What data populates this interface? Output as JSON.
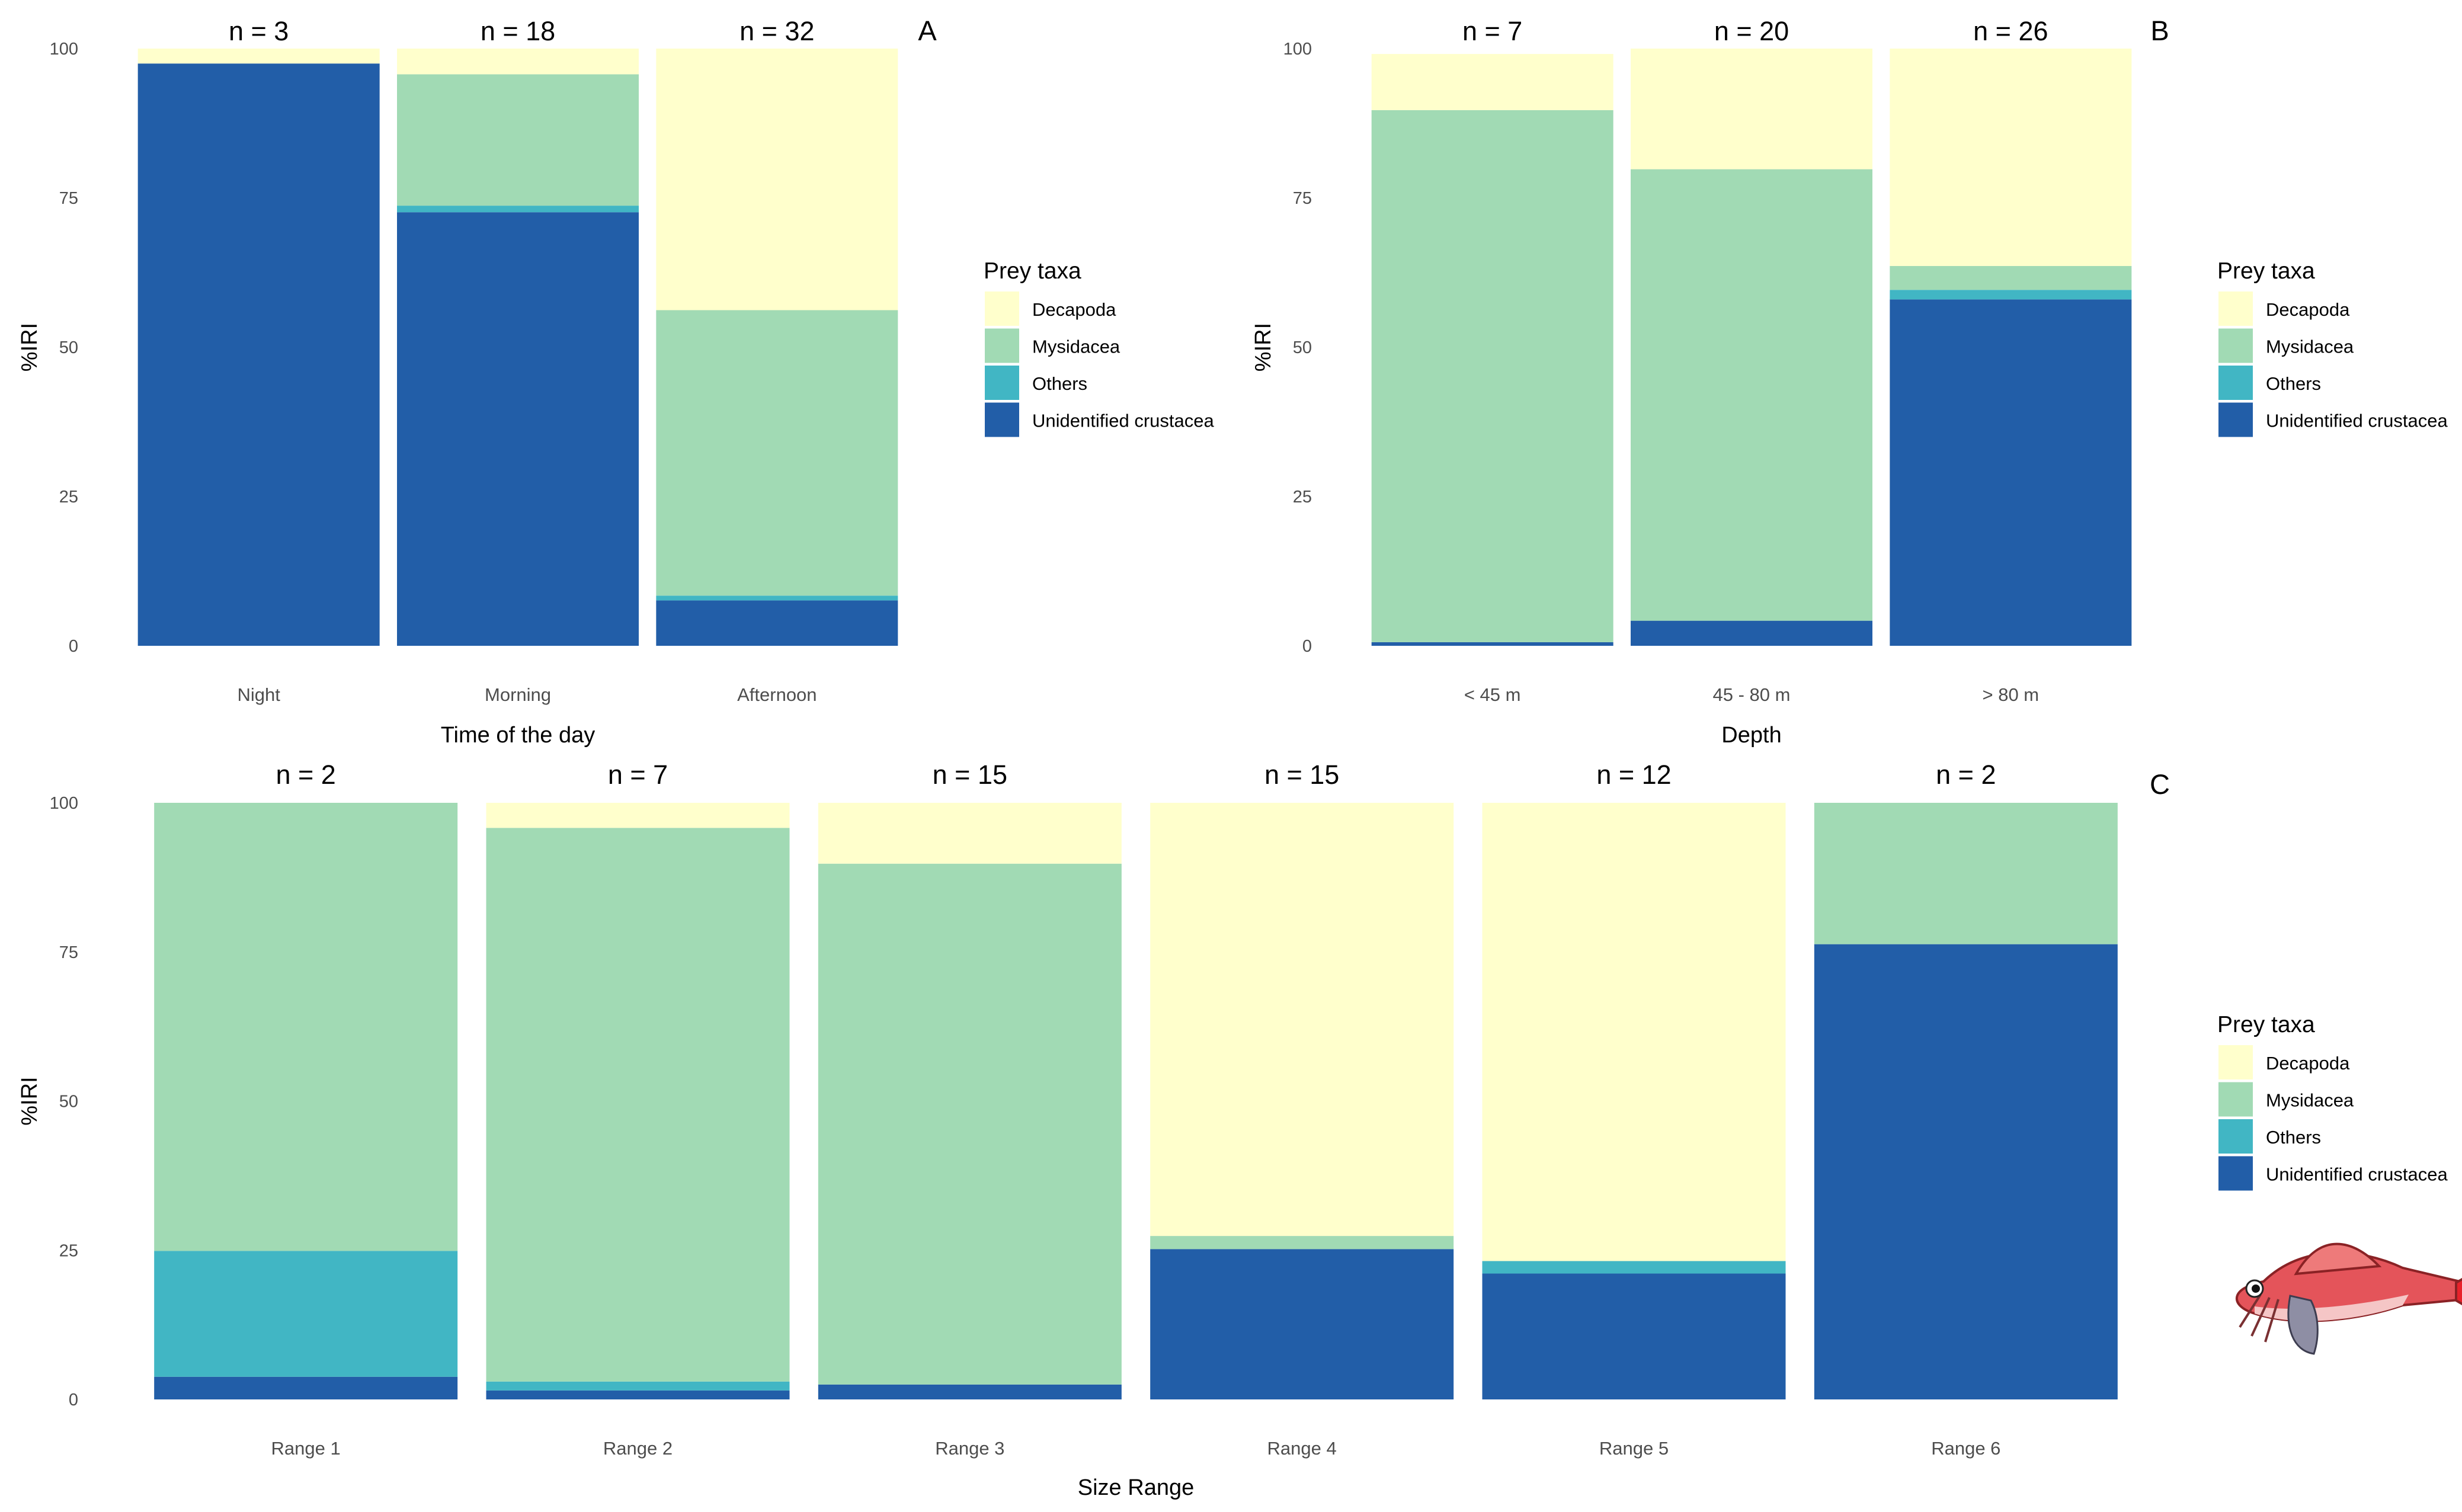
{
  "colors": {
    "Decapoda": "#FFFFCC",
    "Mysidacea": "#A1DAB4",
    "Others": "#41B6C4",
    "Unidentified crustacea": "#225EA8"
  },
  "legend": {
    "title": "Prey taxa",
    "items": [
      "Decapoda",
      "Mysidacea",
      "Others",
      "Unidentified crustacea"
    ]
  },
  "fish_illustration": "red-gurnard-fish-icon",
  "chart_data": [
    {
      "type": "bar",
      "stacked": true,
      "panel": "A",
      "xlabel": "Time of the day",
      "ylabel": "%IRI",
      "ylim": [
        0,
        100
      ],
      "yticks": [
        "0",
        "25",
        "50",
        "75",
        "100"
      ],
      "categories": [
        "Night",
        "Morning",
        "Afternoon"
      ],
      "n_labels": [
        "n = 3",
        "n = 18",
        "n = 32"
      ],
      "series": [
        {
          "name": "Unidentified crustacea",
          "values": [
            97.5,
            72.6,
            7.6
          ]
        },
        {
          "name": "Others",
          "values": [
            0,
            1.1,
            0.8
          ]
        },
        {
          "name": "Mysidacea",
          "values": [
            0,
            22.0,
            47.8
          ]
        },
        {
          "name": "Decapoda",
          "values": [
            2.5,
            4.3,
            43.8
          ]
        }
      ]
    },
    {
      "type": "bar",
      "stacked": true,
      "panel": "B",
      "xlabel": "Depth",
      "ylabel": "%IRI",
      "ylim": [
        0,
        100
      ],
      "yticks": [
        "0",
        "25",
        "50",
        "75",
        "100"
      ],
      "categories": [
        "< 45 m",
        "45 - 80 m",
        "> 80 m"
      ],
      "n_labels": [
        "n = 7",
        "n = 20",
        "n = 26"
      ],
      "series": [
        {
          "name": "Unidentified crustacea",
          "values": [
            0.6,
            4.2,
            58.0
          ]
        },
        {
          "name": "Others",
          "values": [
            0,
            0,
            1.6
          ]
        },
        {
          "name": "Mysidacea",
          "values": [
            89.1,
            75.6,
            4.0
          ]
        },
        {
          "name": "Decapoda",
          "values": [
            9.4,
            20.2,
            36.4
          ]
        }
      ]
    },
    {
      "type": "bar",
      "stacked": true,
      "panel": "C",
      "xlabel": "Size Range",
      "ylabel": "%IRI",
      "ylim": [
        0,
        100
      ],
      "yticks": [
        "0",
        "25",
        "50",
        "75",
        "100"
      ],
      "categories": [
        "Range 1",
        "Range 2",
        "Range 3",
        "Range 4",
        "Range 5",
        "Range 6"
      ],
      "n_labels": [
        "n = 2",
        "n = 7",
        "n = 15",
        "n = 15",
        "n = 12",
        "n = 2"
      ],
      "series": [
        {
          "name": "Unidentified crustacea",
          "values": [
            3.8,
            1.5,
            2.5,
            25.2,
            21.1,
            76.3
          ]
        },
        {
          "name": "Others",
          "values": [
            21.1,
            1.5,
            0,
            0,
            2.1,
            0
          ]
        },
        {
          "name": "Mysidacea",
          "values": [
            75.1,
            92.8,
            87.3,
            2.2,
            0,
            23.7
          ]
        },
        {
          "name": "Decapoda",
          "values": [
            0,
            4.2,
            10.2,
            72.6,
            76.8,
            0
          ]
        }
      ]
    }
  ]
}
